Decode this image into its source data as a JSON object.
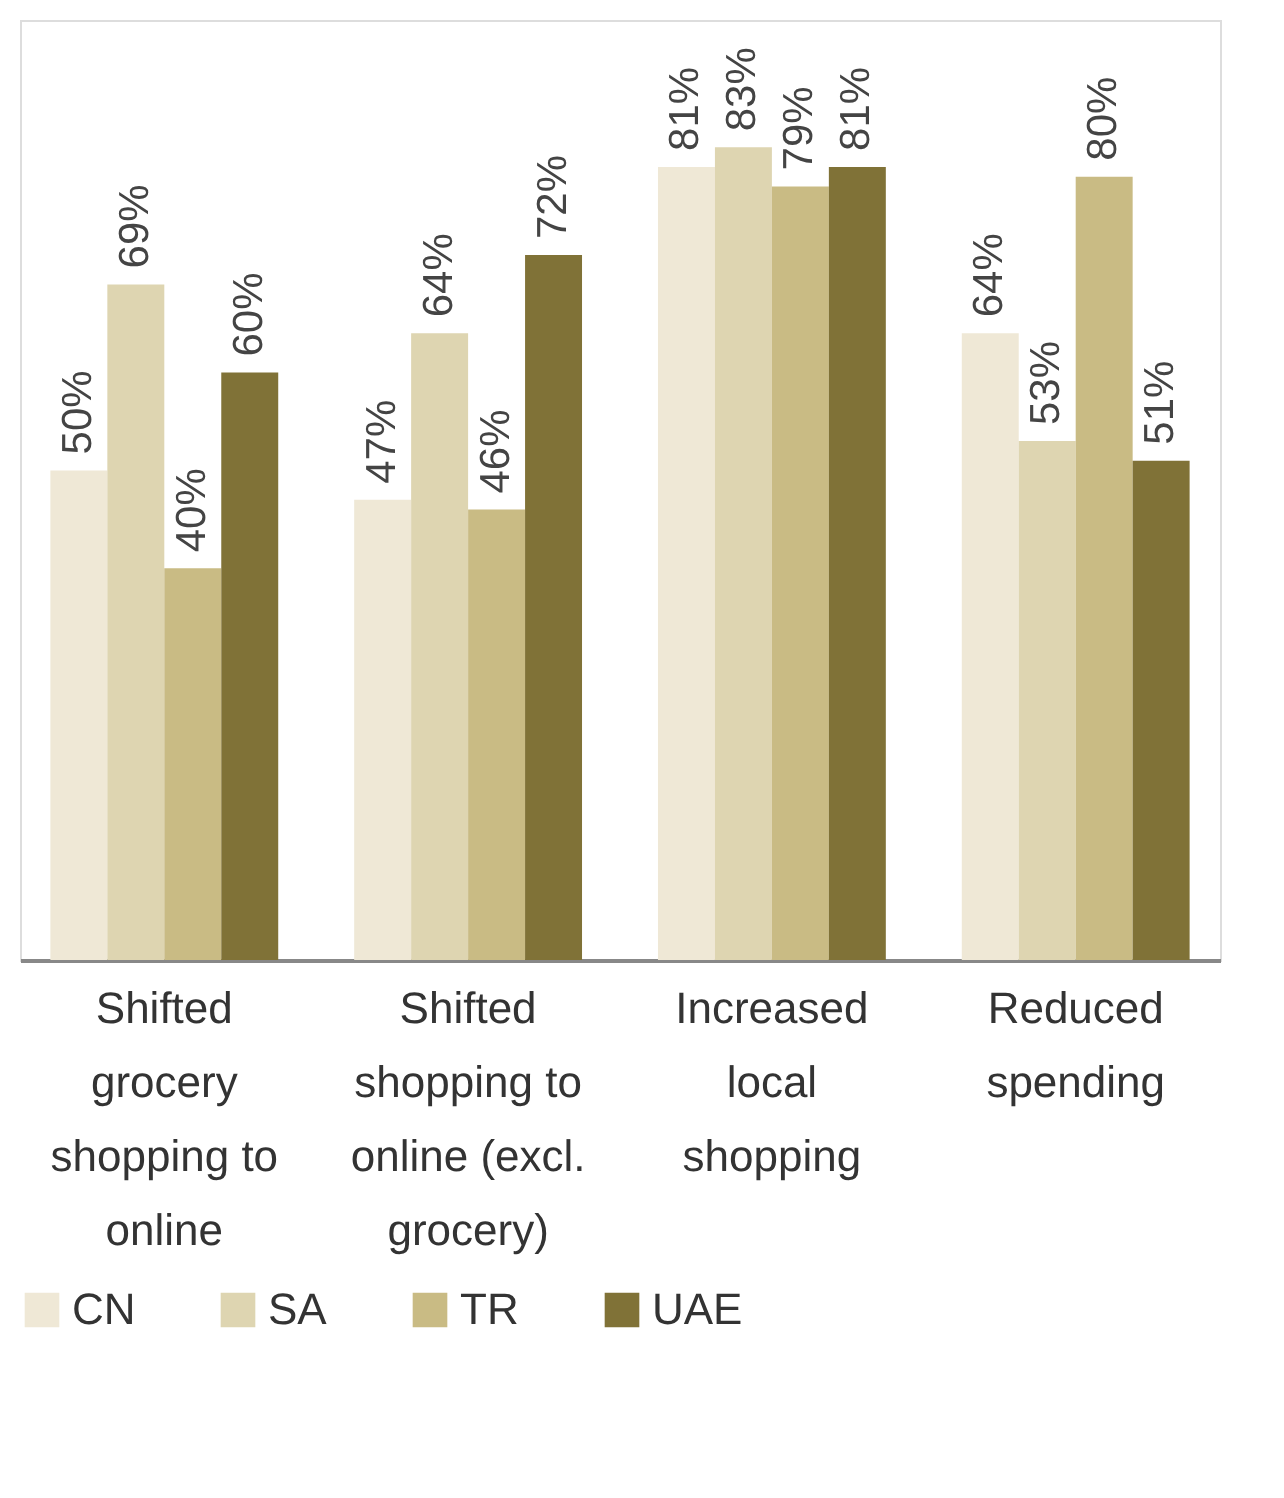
{
  "chart_data": {
    "type": "bar",
    "categories": [
      "Shifted grocery shopping to online",
      "Shifted shopping to online (excl. grocery)",
      "Increased local shopping",
      "Reduced spending"
    ],
    "series": [
      {
        "name": "CN",
        "color": "#efe8d6",
        "values": [
          50,
          47,
          81,
          64
        ],
        "value_labels": [
          "50%",
          "47%",
          "81%",
          "64%"
        ]
      },
      {
        "name": "SA",
        "color": "#ded5b1",
        "values": [
          69,
          64,
          83,
          53
        ],
        "value_labels": [
          "69%",
          "64%",
          "83%",
          "53%"
        ]
      },
      {
        "name": "TR",
        "color": "#c9bb84",
        "values": [
          40,
          46,
          79,
          80
        ],
        "value_labels": [
          "40%",
          "46%",
          "79%",
          "80%"
        ]
      },
      {
        "name": "UAE",
        "color": "#807237",
        "values": [
          60,
          72,
          81,
          51
        ],
        "value_labels": [
          "60%",
          "72%",
          "81%",
          "51%"
        ]
      }
    ],
    "ylim": [
      0,
      96
    ],
    "legend": "bottom"
  }
}
